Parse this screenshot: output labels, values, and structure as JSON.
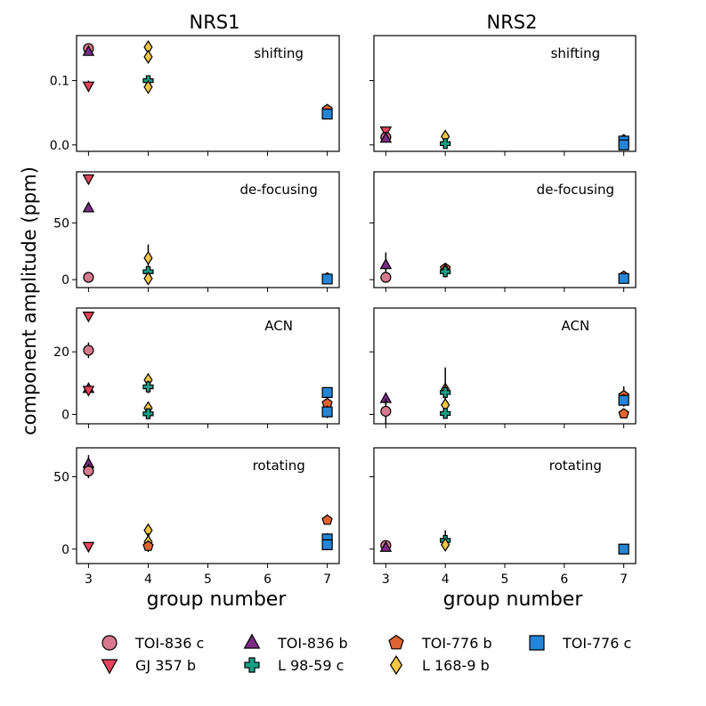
{
  "figure": {
    "ylabel": "component amplitude (ppm)",
    "xlabel": "group number",
    "columns": [
      "NRS1",
      "NRS2"
    ],
    "xticks": [
      "3",
      "4",
      "5",
      "6",
      "7"
    ],
    "xlim": [
      2.8,
      7.2
    ]
  },
  "legend": {
    "entries": [
      {
        "id": "toi836c",
        "label": "TOI-836 c",
        "marker": "circle",
        "color": "#d6798e"
      },
      {
        "id": "gj357b",
        "label": "GJ 357 b",
        "marker": "triangle-down",
        "color": "#e8435c"
      },
      {
        "id": "toi836b",
        "label": "TOI-836 b",
        "marker": "triangle-up",
        "color": "#7b2b86"
      },
      {
        "id": "l9859c",
        "label": "L 98-59 c",
        "marker": "plus",
        "color": "#16a085"
      },
      {
        "id": "toi776b",
        "label": "TOI-776 b",
        "marker": "pentagon",
        "color": "#de6431"
      },
      {
        "id": "l1689b",
        "label": "L 168-9 b",
        "marker": "diamond",
        "color": "#f5c744"
      },
      {
        "id": "toi776c",
        "label": "TOI-776 c",
        "marker": "square",
        "color": "#2485d8"
      }
    ]
  },
  "chart_data": [
    {
      "type": "scatter",
      "detector": "NRS1",
      "component": "shifting",
      "ylim": [
        -0.01,
        0.17
      ],
      "yticks": [
        0.0,
        0.1
      ],
      "ytick_labels": [
        "0.0",
        "0.1"
      ],
      "points": [
        {
          "series": "toi836c",
          "x": 3,
          "y": 0.15,
          "err": 0.003
        },
        {
          "series": "toi836b",
          "x": 3,
          "y": 0.145,
          "err": 0.003
        },
        {
          "series": "gj357b",
          "x": 3,
          "y": 0.092,
          "err": 0.008
        },
        {
          "series": "l1689b",
          "x": 4,
          "y": 0.152,
          "err": 0.005
        },
        {
          "series": "l1689b",
          "x": 4,
          "y": 0.137,
          "err": 0.005
        },
        {
          "series": "l9859c",
          "x": 4,
          "y": 0.1,
          "err": 0.006
        },
        {
          "series": "l1689b",
          "x": 4,
          "y": 0.09,
          "err": 0.005
        },
        {
          "series": "toi776b",
          "x": 7,
          "y": 0.055,
          "err": 0.002
        },
        {
          "series": "toi776c",
          "x": 7,
          "y": 0.048,
          "err": 0.002
        }
      ]
    },
    {
      "type": "scatter",
      "detector": "NRS2",
      "component": "shifting",
      "ylim": [
        -0.01,
        0.17
      ],
      "yticks": [
        0.0,
        0.1
      ],
      "ytick_labels": [
        "",
        ""
      ],
      "points": [
        {
          "series": "gj357b",
          "x": 3,
          "y": 0.022,
          "err": 0.004
        },
        {
          "series": "toi836c",
          "x": 3,
          "y": 0.012,
          "err": 0.004
        },
        {
          "series": "toi836b",
          "x": 3,
          "y": 0.01,
          "err": 0.004
        },
        {
          "series": "l1689b",
          "x": 4,
          "y": 0.013,
          "err": 0.003
        },
        {
          "series": "l9859c",
          "x": 4,
          "y": 0.002,
          "err": 0.007
        },
        {
          "series": "toi776b",
          "x": 7,
          "y": 0.008,
          "err": 0.005
        },
        {
          "series": "toi776c",
          "x": 7,
          "y": 0.006,
          "err": 0.005
        },
        {
          "series": "toi776c",
          "x": 7,
          "y": 0.0,
          "err": 0.003
        }
      ]
    },
    {
      "type": "scatter",
      "detector": "NRS1",
      "component": "de-focusing",
      "ylim": [
        -7,
        95
      ],
      "yticks": [
        0,
        50
      ],
      "ytick_labels": [
        "0",
        "50"
      ],
      "points": [
        {
          "series": "gj357b",
          "x": 3,
          "y": 89,
          "err": 2
        },
        {
          "series": "toi836b",
          "x": 3,
          "y": 63,
          "err": 2
        },
        {
          "series": "toi836c",
          "x": 3,
          "y": 2,
          "err": 2
        },
        {
          "series": "l1689b",
          "x": 4,
          "y": 19,
          "err": 12
        },
        {
          "series": "l9859c",
          "x": 4,
          "y": 7,
          "err": 4
        },
        {
          "series": "l1689b",
          "x": 4,
          "y": 1,
          "err": 2
        },
        {
          "series": "toi776b",
          "x": 7,
          "y": 1.5,
          "err": 1
        },
        {
          "series": "toi776c",
          "x": 7,
          "y": 0.5,
          "err": 1
        }
      ]
    },
    {
      "type": "scatter",
      "detector": "NRS2",
      "component": "de-focusing",
      "ylim": [
        -7,
        95
      ],
      "yticks": [
        0,
        50
      ],
      "ytick_labels": [
        "",
        ""
      ],
      "points": [
        {
          "series": "toi836b",
          "x": 3,
          "y": 13,
          "err": 11
        },
        {
          "series": "toi836c",
          "x": 3,
          "y": 2,
          "err": 3
        },
        {
          "series": "toi776b",
          "x": 4,
          "y": 10,
          "err": 3
        },
        {
          "series": "l1689b",
          "x": 4,
          "y": 8,
          "err": 2
        },
        {
          "series": "l9859c",
          "x": 4,
          "y": 7,
          "err": 5
        },
        {
          "series": "toi776b",
          "x": 7,
          "y": 3,
          "err": 2
        },
        {
          "series": "toi776c",
          "x": 7,
          "y": 1,
          "err": 2
        }
      ]
    },
    {
      "type": "scatter",
      "detector": "NRS1",
      "component": "ACN",
      "ylim": [
        -3,
        34
      ],
      "yticks": [
        0,
        20
      ],
      "ytick_labels": [
        "0",
        "20"
      ],
      "points": [
        {
          "series": "gj357b",
          "x": 3,
          "y": 31.5,
          "err": 1
        },
        {
          "series": "toi836c",
          "x": 3,
          "y": 20.5,
          "err": 2.5
        },
        {
          "series": "toi836b",
          "x": 3,
          "y": 8.2,
          "err": 1
        },
        {
          "series": "gj357b",
          "x": 3,
          "y": 7.8,
          "err": 1
        },
        {
          "series": "l1689b",
          "x": 4,
          "y": 11,
          "err": 2
        },
        {
          "series": "l9859c",
          "x": 4,
          "y": 8.8,
          "err": 2
        },
        {
          "series": "l1689b",
          "x": 4,
          "y": 2,
          "err": 2
        },
        {
          "series": "l9859c",
          "x": 4,
          "y": 0.2,
          "err": 1.5
        },
        {
          "series": "toi776c",
          "x": 7,
          "y": 7,
          "err": 1.5
        },
        {
          "series": "toi776b",
          "x": 7,
          "y": 3.5,
          "err": 1
        },
        {
          "series": "toi776c",
          "x": 7,
          "y": 0.8,
          "err": 2
        }
      ]
    },
    {
      "type": "scatter",
      "detector": "NRS2",
      "component": "ACN",
      "ylim": [
        -3,
        34
      ],
      "yticks": [
        0,
        20
      ],
      "ytick_labels": [
        "",
        ""
      ],
      "points": [
        {
          "series": "toi836b",
          "x": 3,
          "y": 5,
          "err": 2
        },
        {
          "series": "toi836c",
          "x": 3,
          "y": 1,
          "err": 4
        },
        {
          "series": "l1689b",
          "x": 4,
          "y": 8,
          "err": 7
        },
        {
          "series": "l9859c",
          "x": 4,
          "y": 7,
          "err": 3
        },
        {
          "series": "l1689b",
          "x": 4,
          "y": 3,
          "err": 2
        },
        {
          "series": "l9859c",
          "x": 4,
          "y": 0.3,
          "err": 1.5
        },
        {
          "series": "toi776b",
          "x": 7,
          "y": 6,
          "err": 3
        },
        {
          "series": "toi776c",
          "x": 7,
          "y": 4.5,
          "err": 2
        },
        {
          "series": "toi776b",
          "x": 7,
          "y": 0.2,
          "err": 0.5
        }
      ]
    },
    {
      "type": "scatter",
      "detector": "NRS1",
      "component": "rotating",
      "ylim": [
        -10,
        70
      ],
      "yticks": [
        0,
        50
      ],
      "ytick_labels": [
        "0",
        "50"
      ],
      "points": [
        {
          "series": "toi836b",
          "x": 3,
          "y": 59,
          "err": 6
        },
        {
          "series": "toi836c",
          "x": 3,
          "y": 54,
          "err": 5
        },
        {
          "series": "gj357b",
          "x": 3,
          "y": 2,
          "err": 2
        },
        {
          "series": "l1689b",
          "x": 4,
          "y": 13,
          "err": 4
        },
        {
          "series": "l1689b",
          "x": 4,
          "y": 5,
          "err": 6
        },
        {
          "series": "toi776b",
          "x": 4,
          "y": 2,
          "err": 4
        },
        {
          "series": "toi776b",
          "x": 7,
          "y": 20,
          "err": 3
        },
        {
          "series": "toi776c",
          "x": 7,
          "y": 7,
          "err": 4
        },
        {
          "series": "toi776c",
          "x": 7,
          "y": 3,
          "err": 2
        }
      ]
    },
    {
      "type": "scatter",
      "detector": "NRS2",
      "component": "rotating",
      "ylim": [
        -10,
        70
      ],
      "yticks": [
        0,
        50
      ],
      "ytick_labels": [
        "",
        ""
      ],
      "points": [
        {
          "series": "toi836c",
          "x": 3,
          "y": 2.5,
          "err": 3
        },
        {
          "series": "toi836b",
          "x": 3,
          "y": 1,
          "err": 2
        },
        {
          "series": "l9859c",
          "x": 4,
          "y": 6,
          "err": 7
        },
        {
          "series": "l1689b",
          "x": 4,
          "y": 3,
          "err": 3
        },
        {
          "series": "toi776c",
          "x": 7,
          "y": 0,
          "err": 1
        }
      ]
    }
  ]
}
